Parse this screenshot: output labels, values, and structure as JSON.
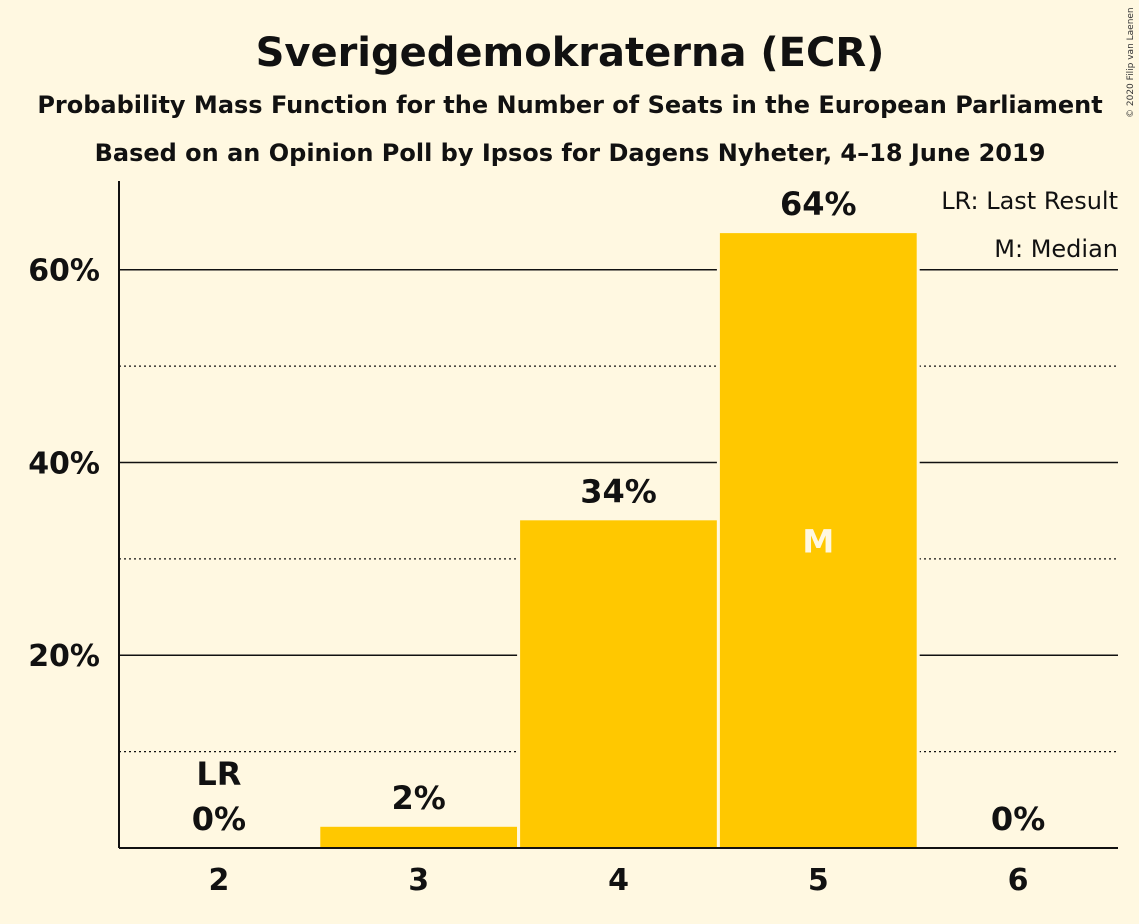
{
  "chart_data": {
    "type": "bar",
    "title": "Sverigedemokraterna (ECR)",
    "subtitle": "Probability Mass Function for the Number of Seats in the European Parliament",
    "subtitle2": "Based on an Opinion Poll by Ipsos for Dagens Nyheter, 4–18 June 2019",
    "categories": [
      "2",
      "3",
      "4",
      "5",
      "6"
    ],
    "values": [
      0,
      2.2,
      34,
      63.8,
      0
    ],
    "data_labels": [
      "0%",
      "2%",
      "34%",
      "64%",
      "0%"
    ],
    "bar_color": "#FFC800",
    "ylim": [
      0,
      69
    ],
    "y_ticks": [
      20,
      40,
      60
    ],
    "y_tick_labels": [
      "20%",
      "40%",
      "60%"
    ],
    "y_minor_ticks": [
      10,
      30,
      50
    ],
    "last_result": {
      "category": "2",
      "label": "LR"
    },
    "median": {
      "category": "5",
      "label": "M"
    },
    "legend": [
      "LR: Last Result",
      "M: Median"
    ],
    "legend_position": "top-right",
    "copyright": "© 2020 Filip van Laenen"
  }
}
